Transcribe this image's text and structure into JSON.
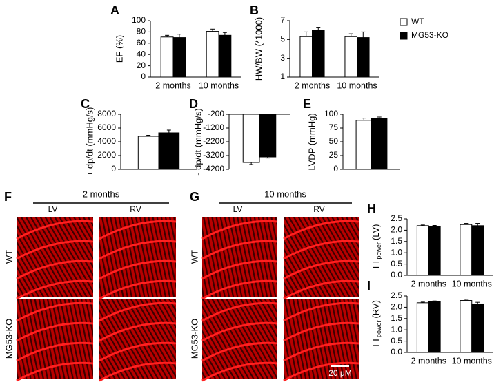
{
  "chart_data": [
    {
      "type": "bar",
      "panel": "A",
      "ylabel": "EF (%)",
      "categories": [
        "2 months",
        "10 months"
      ],
      "ylim": [
        0,
        100
      ],
      "yticks": [
        0,
        20,
        40,
        60,
        80,
        100
      ],
      "series": [
        {
          "name": "WT",
          "color": "#ffffff",
          "values": [
            71,
            81
          ],
          "errors": [
            3,
            4
          ]
        },
        {
          "name": "MG53-KO",
          "color": "#000000",
          "values": [
            70,
            74
          ],
          "errors": [
            6,
            5
          ]
        }
      ]
    },
    {
      "type": "bar",
      "panel": "B",
      "ylabel": "HW/BW (*1000)",
      "categories": [
        "2 months",
        "10 months"
      ],
      "ylim": [
        1,
        7
      ],
      "yticks": [
        1,
        3,
        5,
        7
      ],
      "series": [
        {
          "name": "WT",
          "color": "#ffffff",
          "values": [
            5.3,
            5.3
          ],
          "errors": [
            0.5,
            0.3
          ]
        },
        {
          "name": "MG53-KO",
          "color": "#000000",
          "values": [
            6.0,
            5.2
          ],
          "errors": [
            0.3,
            0.6
          ]
        }
      ]
    },
    {
      "type": "bar",
      "panel": "C",
      "ylabel": "+ dp/dt (mmHg/s)",
      "categories": [
        null
      ],
      "ylim": [
        0,
        8000
      ],
      "yticks": [
        0,
        2000,
        4000,
        6000,
        8000
      ],
      "series": [
        {
          "name": "WT",
          "color": "#ffffff",
          "values": [
            4800
          ],
          "errors": [
            150
          ]
        },
        {
          "name": "MG53-KO",
          "color": "#000000",
          "values": [
            5300
          ],
          "errors": [
            400
          ]
        }
      ]
    },
    {
      "type": "bar",
      "panel": "D",
      "ylabel": "- dp/dt (mmHg/s)",
      "categories": [
        null
      ],
      "ylim": [
        -4200,
        -200
      ],
      "yticks": [
        -4200,
        -3200,
        -2200,
        -1200,
        -200
      ],
      "series": [
        {
          "name": "WT",
          "color": "#ffffff",
          "values": [
            -3700
          ],
          "errors": [
            150
          ]
        },
        {
          "name": "MG53-KO",
          "color": "#000000",
          "values": [
            -3300
          ],
          "errors": [
            80
          ]
        }
      ]
    },
    {
      "type": "bar",
      "panel": "E",
      "ylabel": "LVDP (mmHg)",
      "categories": [
        null
      ],
      "ylim": [
        0,
        100
      ],
      "yticks": [
        0,
        25,
        50,
        75,
        100
      ],
      "series": [
        {
          "name": "WT",
          "color": "#ffffff",
          "values": [
            89
          ],
          "errors": [
            4
          ]
        },
        {
          "name": "MG53-KO",
          "color": "#000000",
          "values": [
            92
          ],
          "errors": [
            3
          ]
        }
      ]
    },
    {
      "type": "bar",
      "panel": "H",
      "ylabel": {
        "main": "TT",
        "sub": "power",
        "suffix": "(LV)"
      },
      "categories": [
        "2 months",
        "10 months"
      ],
      "ylim": [
        0,
        2.5
      ],
      "yticks": [
        {
          "value": 0,
          "label": "0.0"
        },
        {
          "value": 0.5,
          "label": "0.5"
        },
        {
          "value": 1,
          "label": "1.0"
        },
        {
          "value": 1.5,
          "label": "1.5"
        },
        {
          "value": 2,
          "label": "2.0"
        },
        {
          "value": 2.5,
          "label": "2.5"
        }
      ],
      "series": [
        {
          "name": "WT",
          "color": "#ffffff",
          "values": [
            2.2,
            2.25
          ],
          "errors": [
            0.03,
            0.05
          ]
        },
        {
          "name": "MG53-KO",
          "color": "#000000",
          "values": [
            2.18,
            2.2
          ],
          "errors": [
            0.03,
            0.1
          ]
        }
      ]
    },
    {
      "type": "bar",
      "panel": "I",
      "ylabel": {
        "main": "TT",
        "sub": "power",
        "suffix": "(RV)"
      },
      "categories": [
        "2 months",
        "10 months"
      ],
      "ylim": [
        0,
        2.5
      ],
      "yticks": [
        {
          "value": 0,
          "label": "0.0"
        },
        {
          "value": 0.5,
          "label": "0.5"
        },
        {
          "value": 1,
          "label": "1.0"
        },
        {
          "value": 1.5,
          "label": "1.5"
        },
        {
          "value": 2,
          "label": "2.0"
        },
        {
          "value": 2.5,
          "label": "2.5"
        }
      ],
      "series": [
        {
          "name": "WT",
          "color": "#ffffff",
          "values": [
            2.2,
            2.3
          ],
          "errors": [
            0.03,
            0.05
          ]
        },
        {
          "name": "MG53-KO",
          "color": "#000000",
          "values": [
            2.25,
            2.15
          ],
          "errors": [
            0.03,
            0.07
          ]
        }
      ]
    }
  ],
  "micrographs": [
    {
      "panel": "F",
      "title": "2 months",
      "columns": [
        "LV",
        "RV"
      ],
      "rows": [
        "WT",
        "MG53-KO"
      ]
    },
    {
      "panel": "G",
      "title": "10 months",
      "columns": [
        "LV",
        "RV"
      ],
      "rows": [
        "WT",
        "MG53-KO"
      ],
      "scale_bar": "20 μM"
    }
  ]
}
